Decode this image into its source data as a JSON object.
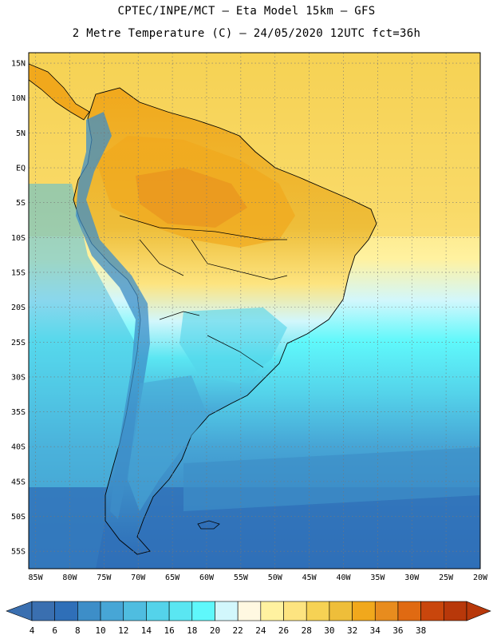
{
  "header": {
    "line1": "CPTEC/INPE/MCT —  Eta Model 15km — GFS",
    "line2": "2 Metre Temperature (C) — 24/05/2020 12UTC fct=36h"
  },
  "map": {
    "lat_labels": [
      "15N",
      "10N",
      "5N",
      "EQ",
      "5S",
      "10S",
      "15S",
      "20S",
      "25S",
      "30S",
      "35S",
      "40S",
      "45S",
      "50S",
      "55S"
    ],
    "lon_labels": [
      "85W",
      "80W",
      "75W",
      "70W",
      "65W",
      "60W",
      "55W",
      "50W",
      "45W",
      "40W",
      "35W",
      "30W",
      "25W",
      "20W"
    ],
    "lat_range": [
      -57.5,
      16.5
    ],
    "lon_range": [
      -86,
      -20
    ]
  },
  "colorbar": {
    "labels": [
      "4",
      "6",
      "8",
      "10",
      "12",
      "14",
      "16",
      "18",
      "20",
      "22",
      "24",
      "26",
      "28",
      "30",
      "32",
      "34",
      "36",
      "38"
    ],
    "colors": [
      "#3a6fb0",
      "#2f6fb8",
      "#3d8ec8",
      "#47a6d6",
      "#4fbde0",
      "#54d3ea",
      "#5ae6f2",
      "#5ff8fb",
      "#d2f7fc",
      "#fff8e1",
      "#fff2a0",
      "#fde480",
      "#f6d254",
      "#eebe3a",
      "#f1a81c",
      "#e88c1e",
      "#e06a12",
      "#c9460c",
      "#b8380a"
    ]
  }
}
